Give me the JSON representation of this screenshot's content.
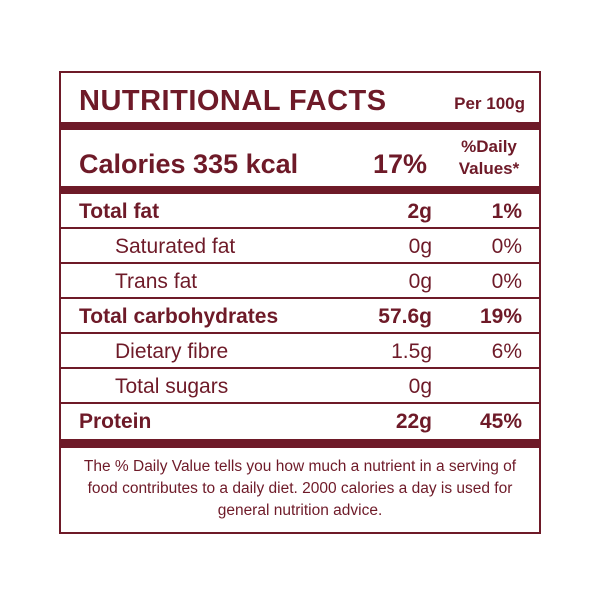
{
  "header": {
    "title": "NUTRITIONAL FACTS",
    "serving": "Per 100g"
  },
  "calories": {
    "label": "Calories 335 kcal",
    "daily": "17%",
    "dv_header": "%Daily Values*"
  },
  "rows": [
    {
      "name": "Total fat",
      "amount": "2g",
      "dv": "1%",
      "bold": true
    },
    {
      "name": "Saturated fat",
      "amount": "0g",
      "dv": "0%",
      "bold": false
    },
    {
      "name": "Trans fat",
      "amount": "0g",
      "dv": "0%",
      "bold": false
    },
    {
      "name": "Total carbohydrates",
      "amount": "57.6g",
      "dv": "19%",
      "bold": true
    },
    {
      "name": "Dietary fibre",
      "amount": "1.5g",
      "dv": "6%",
      "bold": false
    },
    {
      "name": "Total sugars",
      "amount": "0g",
      "bold": false
    },
    {
      "name": "Protein",
      "amount": "22g",
      "dv": "45%",
      "bold": true
    }
  ],
  "footnote": "The % Daily Value tells you how much a nutrient in a serving of food contributes to a daily diet. 2000 calories a day is used for general nutrition advice."
}
